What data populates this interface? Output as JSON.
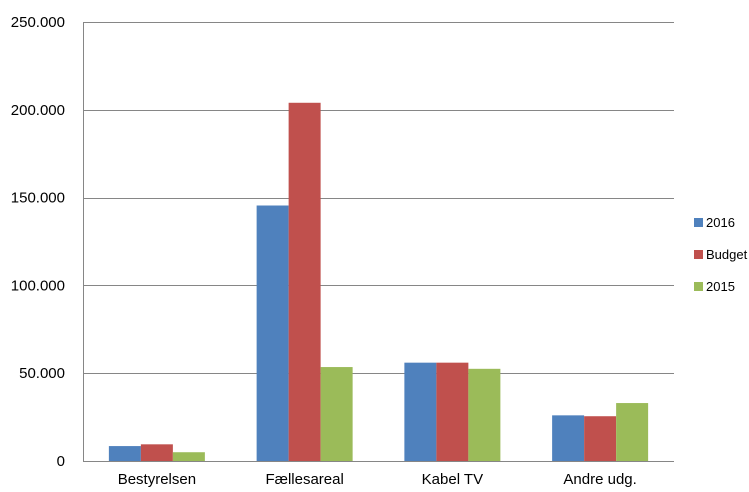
{
  "chart_data": {
    "type": "bar",
    "categories": [
      "Bestyrelsen",
      "Fællesareal",
      "Kabel TV",
      "Andre udg."
    ],
    "series": [
      {
        "name": "2016",
        "color": "#4f81bd",
        "values": [
          8500,
          145500,
          56000,
          26000
        ]
      },
      {
        "name": "Budget",
        "color": "#c0504d",
        "values": [
          9500,
          204000,
          56000,
          25500
        ]
      },
      {
        "name": "2015",
        "color": "#9bbb59",
        "values": [
          5000,
          53500,
          52500,
          33000
        ]
      }
    ],
    "y_ticks": [
      "0",
      "50.000",
      "100.000",
      "150.000",
      "200.000",
      "250.000"
    ],
    "ylim": [
      0,
      250000
    ],
    "grid": true,
    "legend_position": "right"
  }
}
